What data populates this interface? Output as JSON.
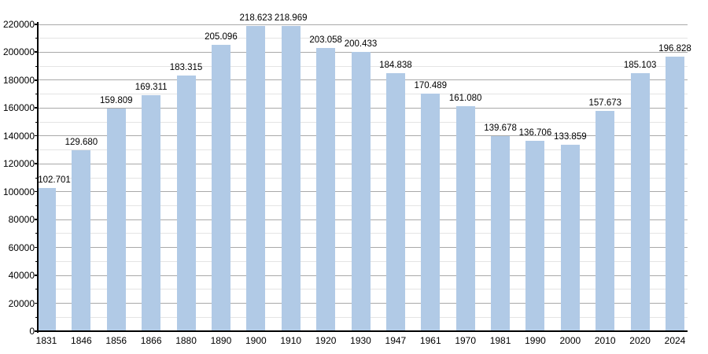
{
  "chart_data": {
    "type": "bar",
    "title": "",
    "xlabel": "",
    "ylabel": "",
    "legend": "none",
    "grid": "major-and-minor-horizontal",
    "categories": [
      "1831",
      "1846",
      "1856",
      "1866",
      "1880",
      "1890",
      "1900",
      "1910",
      "1920",
      "1930",
      "1947",
      "1961",
      "1970",
      "1981",
      "1990",
      "2000",
      "2010",
      "2020",
      "2024"
    ],
    "values": [
      102701,
      129680,
      159809,
      169311,
      183315,
      205096,
      218623,
      218969,
      203058,
      200433,
      184838,
      170489,
      161080,
      139678,
      136706,
      133859,
      157673,
      185103,
      196828
    ],
    "value_labels": [
      "102.701",
      "129.680",
      "159.809",
      "169.311",
      "183.315",
      "205.096",
      "218.623",
      "218.969",
      "203.058",
      "200.433",
      "184.838",
      "170.489",
      "161.080",
      "139.678",
      "136.706",
      "133.859",
      "157.673",
      "185.103",
      "196.828"
    ],
    "ylim": [
      0,
      220000
    ],
    "y_major_step": 20000,
    "y_minor_step": 10000,
    "y_tick_labels": [
      "0",
      "20000",
      "40000",
      "60000",
      "80000",
      "100000",
      "120000",
      "140000",
      "160000",
      "180000",
      "200000",
      "220000"
    ],
    "colors": {
      "bar_fill": "#b1cae6",
      "major_gridline": "#a9a9a9",
      "minor_gridline": "#e4e4e4",
      "axis": "#000000",
      "text": "#000000",
      "background": "#ffffff"
    }
  }
}
